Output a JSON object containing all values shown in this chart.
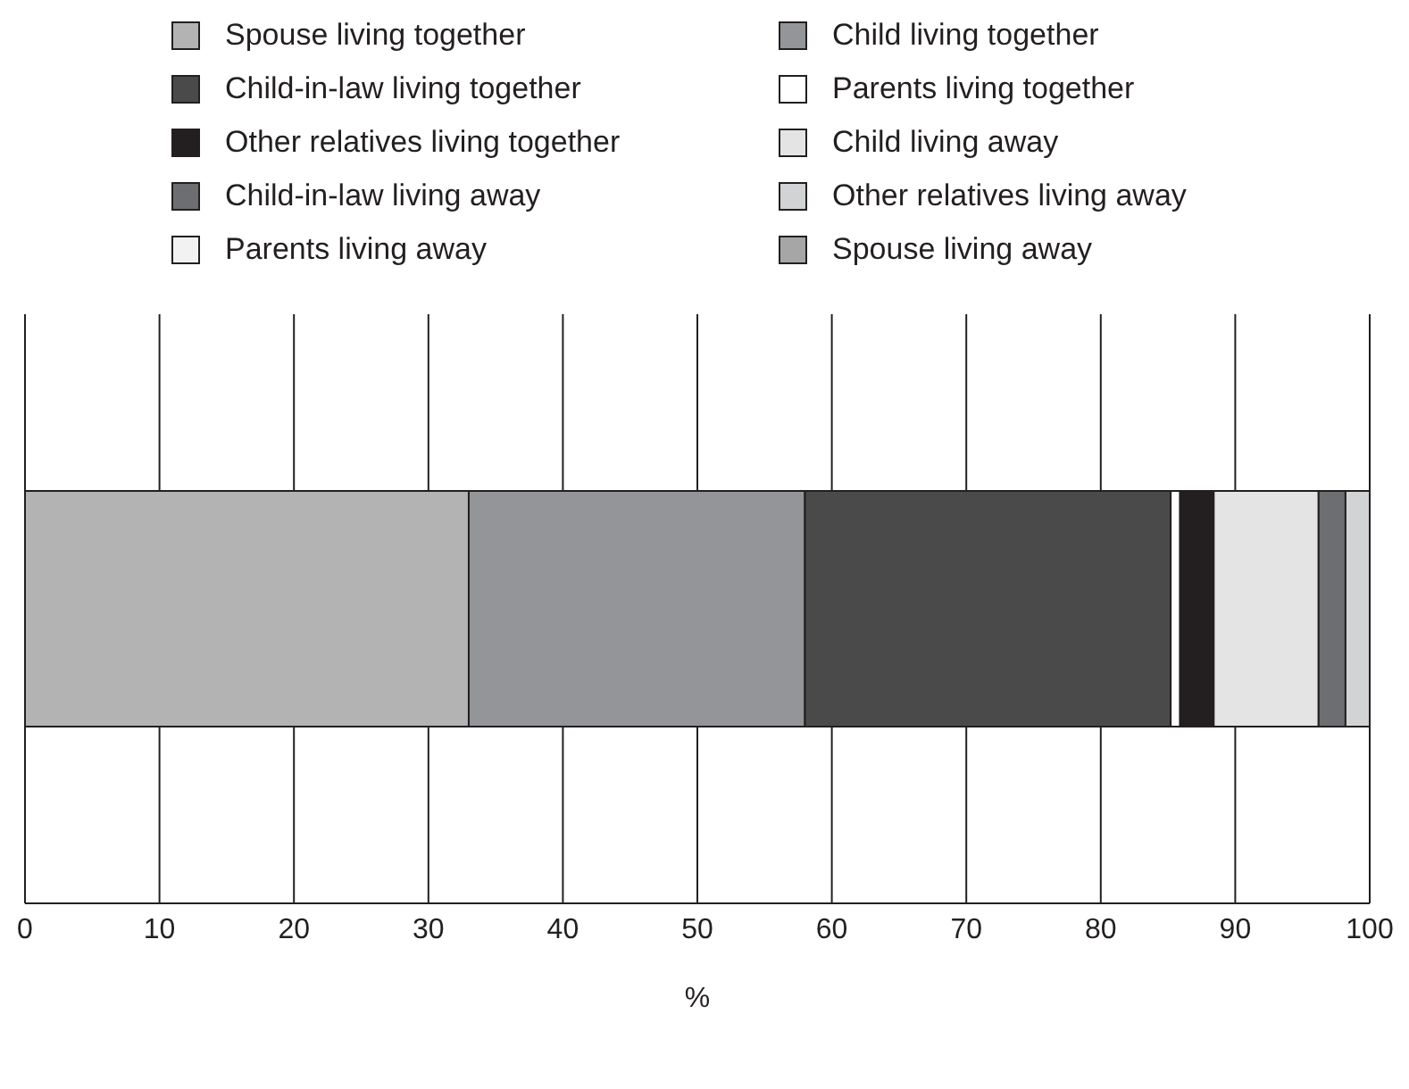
{
  "chart_data": {
    "type": "bar",
    "orientation": "horizontal",
    "stacked": true,
    "categories": [
      null
    ],
    "xlabel": "%",
    "xlim": [
      0,
      100
    ],
    "xticks": [
      0,
      10,
      20,
      30,
      40,
      50,
      60,
      70,
      80,
      90,
      100
    ],
    "grid": "x",
    "legend": "top",
    "tick_labels": "x",
    "series": [
      {
        "name": "Spouse living together",
        "color": "#b3b3b3",
        "values": [
          33
        ]
      },
      {
        "name": "Child living together",
        "color": "#939598",
        "values": [
          25
        ]
      },
      {
        "name": "Child-in-law living together",
        "color": "#4a4a4a",
        "values": [
          27.2
        ]
      },
      {
        "name": "Parents living together",
        "color": "#ffffff",
        "values": [
          0.7
        ]
      },
      {
        "name": "Other relatives living together",
        "color": "#231f20",
        "values": [
          2.5
        ]
      },
      {
        "name": "Child living away",
        "color": "#e4e4e4",
        "values": [
          7.8
        ]
      },
      {
        "name": "Child-in-law living away",
        "color": "#6d6e71",
        "values": [
          2
        ]
      },
      {
        "name": "Other relatives living away",
        "color": "#d1d3d4",
        "values": [
          1.8
        ]
      },
      {
        "name": "Parents living away",
        "color": "#f2f2f2",
        "values": [
          0
        ]
      },
      {
        "name": "Spouse living away",
        "color": "#a6a6a6",
        "values": [
          0
        ]
      }
    ]
  }
}
